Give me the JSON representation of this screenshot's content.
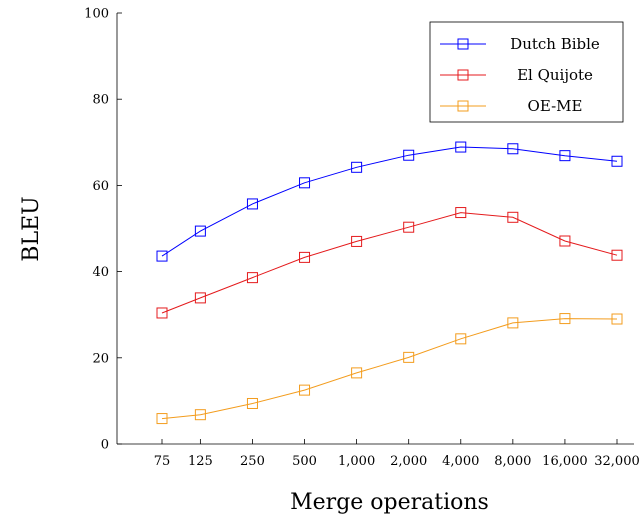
{
  "chart_data": {
    "type": "line",
    "title": "",
    "xlabel": "Merge operations",
    "ylabel": "BLEU",
    "categories": [
      "75",
      "125",
      "250",
      "500",
      "1,000",
      "2,000",
      "4,000",
      "8,000",
      "16,000",
      "32,000"
    ],
    "x": [
      75,
      125,
      250,
      500,
      1000,
      2000,
      4000,
      8000,
      16000,
      32000
    ],
    "x_scale": "log",
    "ylim": [
      0,
      100
    ],
    "yticks": [
      0,
      20,
      40,
      60,
      80,
      100
    ],
    "grid": false,
    "legend_position": "top-right",
    "series": [
      {
        "name": "Dutch Bible",
        "color": "#0000ff",
        "marker": "square",
        "values": [
          43.6,
          49.4,
          55.7,
          60.6,
          64.2,
          67.0,
          68.9,
          68.5,
          66.9,
          65.6
        ]
      },
      {
        "name": "El Quijote",
        "color": "#e41a1c",
        "marker": "square",
        "values": [
          30.4,
          33.9,
          38.6,
          43.3,
          47.0,
          50.3,
          53.7,
          52.6,
          47.1,
          43.8
        ]
      },
      {
        "name": "OE-ME",
        "color": "#f39c1d",
        "marker": "square",
        "values": [
          5.9,
          6.8,
          9.4,
          12.5,
          16.5,
          20.1,
          24.4,
          28.1,
          29.1,
          29.0
        ]
      }
    ]
  }
}
